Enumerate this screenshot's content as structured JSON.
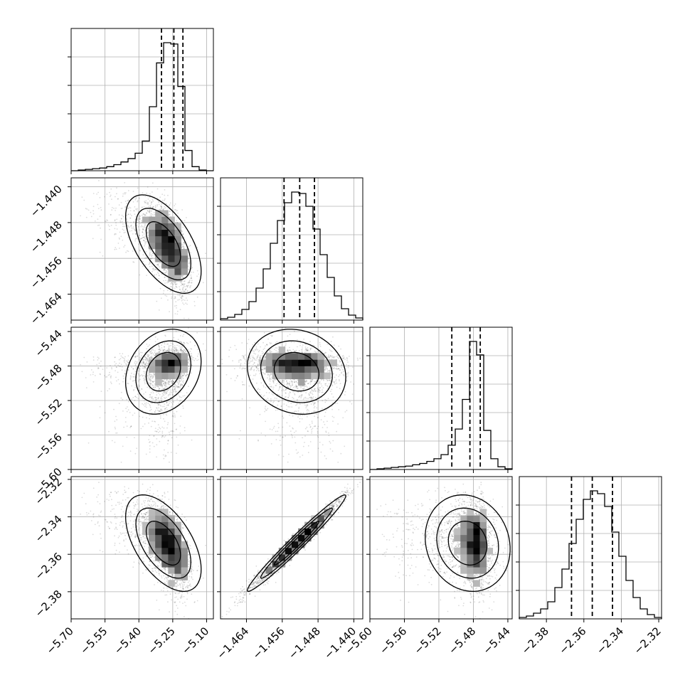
{
  "chart_data": {
    "type": "corner",
    "parameters": 4,
    "grid": true,
    "axes": [
      {
        "range": [
          -5.7,
          -5.07
        ],
        "ticks": [
          "−5.70",
          "−5.55",
          "−5.40",
          "−5.25",
          "−5.10"
        ],
        "tick_values": [
          -5.7,
          -5.55,
          -5.4,
          -5.25,
          -5.1
        ],
        "quantiles": [
          -5.3,
          -5.245,
          -5.205
        ]
      },
      {
        "range": [
          -1.4698,
          -1.438
        ],
        "ticks": [
          "−1.440",
          "−1.448",
          "−1.456",
          "−1.464"
        ],
        "tick_values": [
          -1.44,
          -1.448,
          -1.456,
          -1.464
        ],
        "x_ticks": [
          "−1.464",
          "−1.456",
          "−1.448",
          "−1.440"
        ],
        "quantiles": [
          -1.4556,
          -1.4521,
          -1.4488
        ]
      },
      {
        "range": [
          -5.6,
          -5.435
        ],
        "ticks": [
          "−5.44",
          "−5.48",
          "−5.52",
          "−5.56",
          "−5.60"
        ],
        "tick_values": [
          -5.44,
          -5.48,
          -5.52,
          -5.56,
          -5.6
        ],
        "x_ticks": [
          "−5.60",
          "−5.56",
          "−5.52",
          "−5.48",
          "−5.44"
        ],
        "quantiles": [
          -5.505,
          -5.484,
          -5.472
        ]
      },
      {
        "range": [
          -2.3945,
          -2.3185
        ],
        "ticks": [
          "−2.32",
          "−2.34",
          "−2.36",
          "−2.38"
        ],
        "tick_values": [
          -2.32,
          -2.34,
          -2.36,
          -2.38
        ],
        "x_ticks": [
          "−2.38",
          "−2.36",
          "−2.34",
          "−2.32"
        ],
        "quantiles": [
          -2.3666,
          -2.3555,
          -2.3447
        ]
      }
    ],
    "histograms": [
      {
        "param": 0,
        "counts": [
          0,
          1,
          2,
          3,
          4,
          6,
          9,
          13,
          18,
          26,
          44,
          95,
          160,
          190,
          188,
          125,
          30,
          6,
          1,
          0
        ]
      },
      {
        "param": 1,
        "counts": [
          2,
          4,
          8,
          15,
          26,
          45,
          72,
          108,
          140,
          165,
          180,
          178,
          160,
          128,
          92,
          60,
          34,
          16,
          7,
          3
        ]
      },
      {
        "param": 2,
        "counts": [
          0,
          1,
          2,
          3,
          4,
          5,
          7,
          9,
          12,
          16,
          22,
          36,
          60,
          104,
          190,
          170,
          58,
          16,
          4,
          1
        ]
      },
      {
        "param": 3,
        "counts": [
          2,
          4,
          8,
          14,
          24,
          44,
          70,
          106,
          140,
          168,
          180,
          176,
          158,
          122,
          88,
          54,
          30,
          14,
          6,
          2
        ]
      }
    ],
    "correlations": {
      "0-1": -0.6,
      "0-2": 0.3,
      "1-2": 0.25,
      "0-3": -0.55,
      "1-3": 0.98,
      "2-3": -0.4
    }
  }
}
